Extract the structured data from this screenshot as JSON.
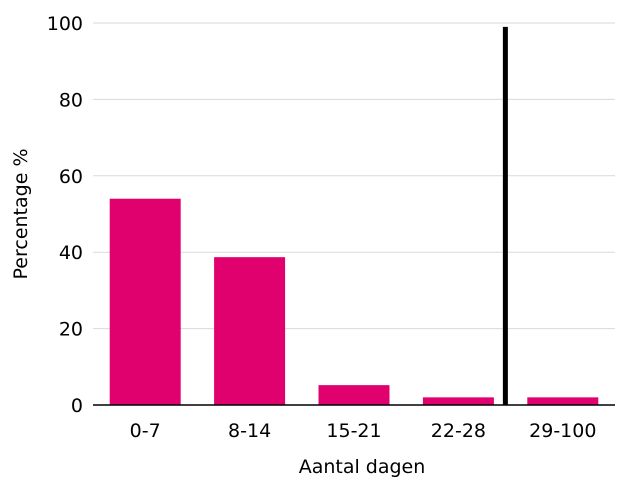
{
  "chart_data": {
    "type": "bar",
    "title": "",
    "xlabel": "Aantal dagen",
    "ylabel": "Percentage %",
    "categories": [
      "0-7",
      "8-14",
      "15-21",
      "22-28",
      "29-100"
    ],
    "values": [
      54,
      38.7,
      5.2,
      2,
      2
    ],
    "ylim": [
      0,
      100
    ],
    "yticks": [
      0,
      20,
      40,
      60,
      80,
      100
    ],
    "grid": true,
    "bar_color": "#e0006e",
    "reference_line": {
      "between_categories": [
        "22-28",
        "29-100"
      ],
      "position_fraction": 0.05,
      "color": "#000000"
    }
  }
}
